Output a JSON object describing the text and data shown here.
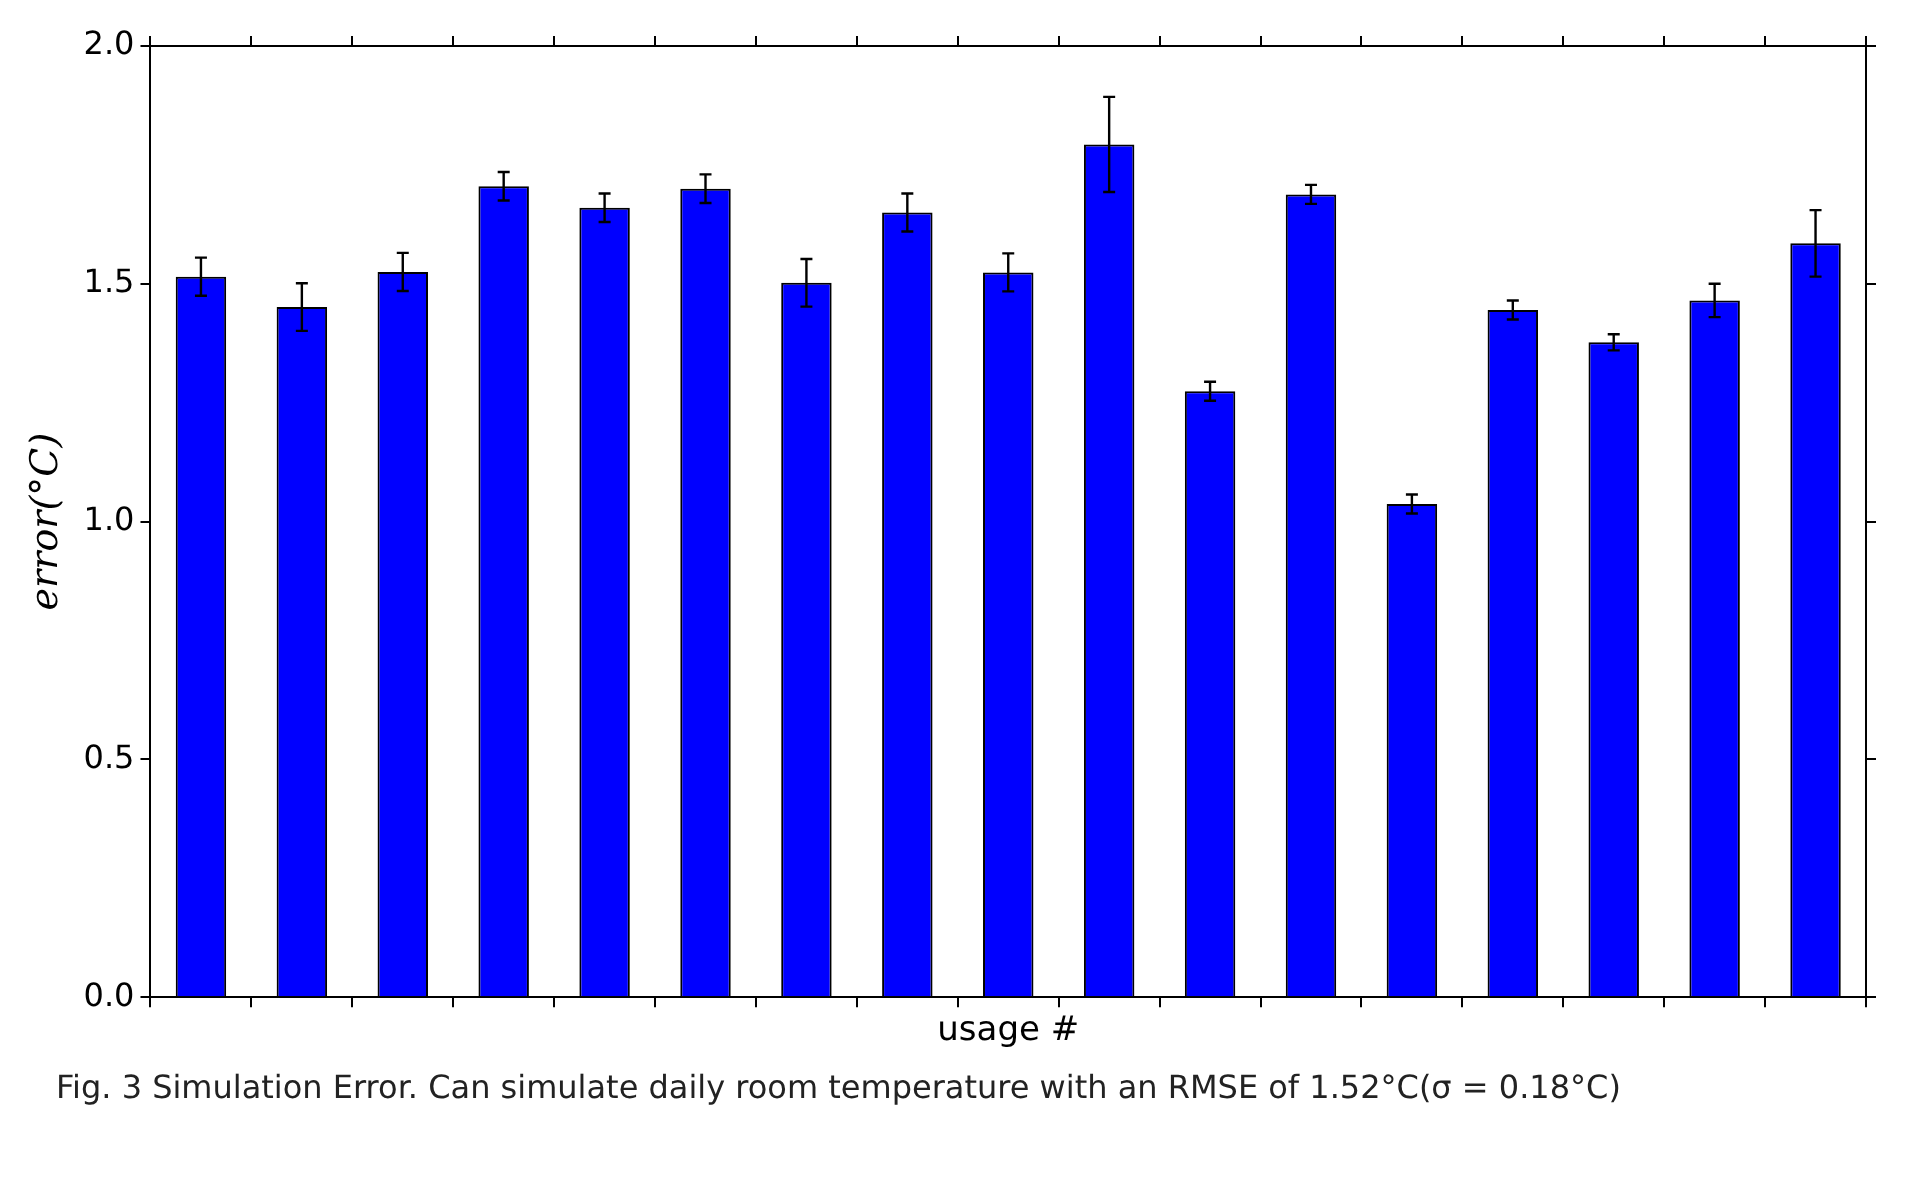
{
  "chart_data": {
    "type": "bar",
    "xlabel": "usage #",
    "ylabel": "error(°C)",
    "categories": [
      null,
      null,
      null,
      null,
      null,
      null,
      null,
      null,
      null,
      null,
      null,
      null,
      null,
      null,
      null,
      null,
      null
    ],
    "series": [
      {
        "color": "#0000ff",
        "values": [
          1.515,
          1.451,
          1.525,
          1.705,
          1.66,
          1.7,
          1.502,
          1.65,
          1.524,
          1.793,
          1.274,
          1.688,
          1.037,
          1.445,
          1.377,
          1.465,
          1.585
        ],
        "errors": [
          0.04,
          0.05,
          0.04,
          0.03,
          0.03,
          0.03,
          0.05,
          0.04,
          0.04,
          0.1,
          0.02,
          0.02,
          0.02,
          0.02,
          0.017,
          0.035,
          0.07
        ]
      }
    ],
    "ylim": [
      0,
      2
    ],
    "yticks": [
      {
        "value": 0,
        "label": "0.0"
      },
      {
        "value": 0.5,
        "label": "0.5"
      },
      {
        "value": 1,
        "label": "1.0"
      },
      {
        "value": 1.5,
        "label": "1.5"
      },
      {
        "value": 2,
        "label": "2.0"
      }
    ],
    "tick_labels": "y",
    "grid": false,
    "legend": false,
    "annotations": [
      "Fig. 3  Simulation Error. Can simulate daily room temperature with an RMSE of 1.52°C(σ = 0.18°C)"
    ]
  }
}
